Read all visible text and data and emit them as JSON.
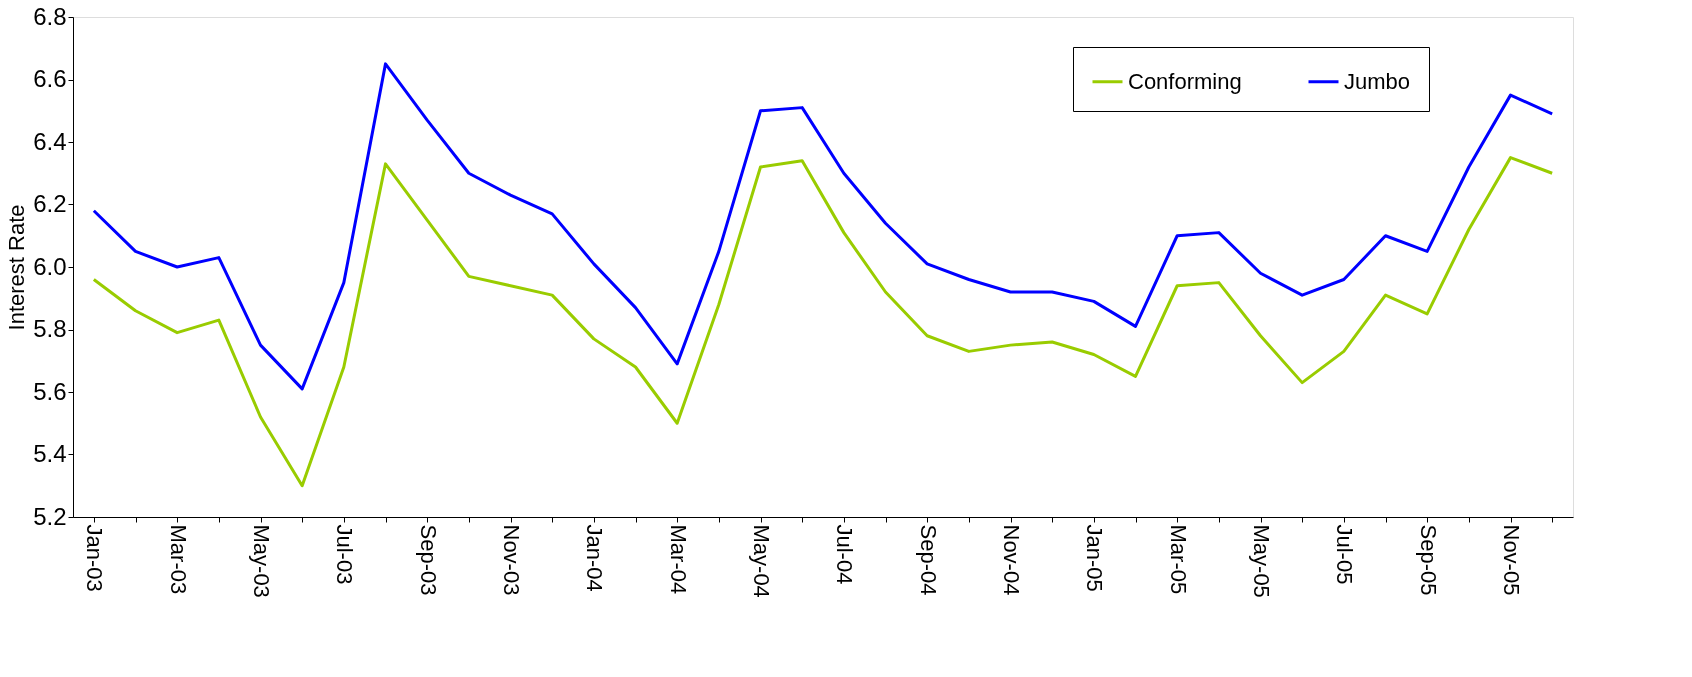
{
  "chart_data": {
    "type": "line",
    "ylabel": "Interest Rate",
    "categories": [
      "Jan-03",
      null,
      "Mar-03",
      null,
      "May-03",
      null,
      "Jul-03",
      null,
      "Sep-03",
      null,
      "Nov-03",
      null,
      "Jan-04",
      null,
      "Mar-04",
      null,
      "May-04",
      null,
      "Jul-04",
      null,
      "Sep-04",
      null,
      "Nov-04",
      null,
      "Jan-05",
      null,
      "Mar-05",
      null,
      "May-05",
      null,
      "Jul-05",
      null,
      "Sep-05",
      null,
      "Nov-05",
      null
    ],
    "series": [
      {
        "name": "Conforming",
        "color": "#99cc00",
        "values": [
          5.96,
          5.86,
          5.79,
          5.83,
          5.52,
          5.3,
          5.68,
          6.33,
          6.15,
          5.97,
          5.94,
          5.91,
          5.77,
          5.68,
          5.5,
          5.88,
          6.32,
          6.34,
          6.11,
          5.92,
          5.78,
          5.73,
          5.75,
          5.76,
          5.72,
          5.65,
          5.94,
          5.95,
          5.78,
          5.63,
          5.73,
          5.91,
          5.85,
          6.12,
          6.35,
          6.3
        ]
      },
      {
        "name": "Jumbo",
        "color": "#0000ff",
        "values": [
          6.18,
          6.05,
          6.0,
          6.03,
          5.75,
          5.61,
          5.95,
          6.65,
          6.47,
          6.3,
          6.23,
          6.17,
          6.01,
          5.87,
          5.69,
          6.05,
          6.5,
          6.51,
          6.3,
          6.14,
          6.01,
          5.96,
          5.92,
          5.92,
          5.89,
          5.81,
          6.1,
          6.11,
          5.98,
          5.91,
          5.96,
          6.1,
          6.05,
          6.32,
          6.55,
          6.49
        ]
      }
    ],
    "ylim": [
      5.2,
      6.8
    ],
    "yticks": [
      {
        "value": 5.2,
        "label": "5.2"
      },
      {
        "value": 5.4,
        "label": "5.4"
      },
      {
        "value": 5.6,
        "label": "5.6"
      },
      {
        "value": 5.8,
        "label": "5.8"
      },
      {
        "value": 6.0,
        "label": "6.0"
      },
      {
        "value": 6.2,
        "label": "6.2"
      },
      {
        "value": 6.4,
        "label": "6.4"
      },
      {
        "value": 6.6,
        "label": "6.6"
      },
      {
        "value": 6.8,
        "label": "6.8"
      }
    ],
    "grid": false,
    "legend": "top right",
    "marker": "none",
    "line_style": "solid"
  }
}
